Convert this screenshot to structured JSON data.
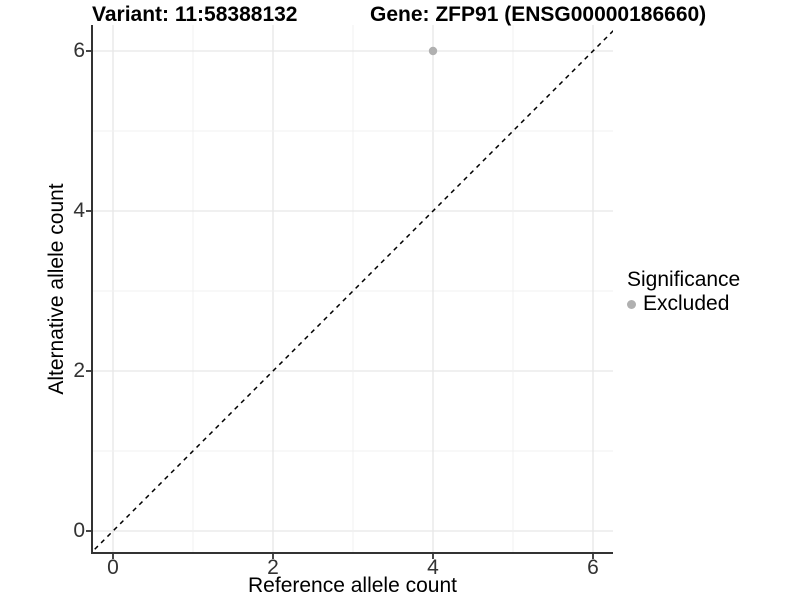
{
  "header": {
    "variant_title": "Variant: 11:58388132",
    "gene_title": "Gene: ZFP91 (ENSG00000186660)"
  },
  "chart_data": {
    "type": "scatter",
    "title": "Variant: 11:58388132  |  Gene: ZFP91 (ENSG00000186660)",
    "xlabel": "Reference allele count",
    "ylabel": "Alternative allele count",
    "xlim": [
      -0.3,
      6.3
    ],
    "ylim": [
      -0.3,
      6.3
    ],
    "x_ticks": [
      0,
      2,
      4,
      6
    ],
    "y_ticks": [
      0,
      2,
      4,
      6
    ],
    "grid": "on",
    "grid_interval": 1,
    "grid_major_color": "#e6e6e6",
    "grid_minor_color": "#f0f0f0",
    "axis_line_color": "#333333",
    "series": [
      {
        "name": "Excluded",
        "color": "#b0b0b0",
        "points": [
          {
            "x": 4,
            "y": 6
          }
        ]
      }
    ],
    "reference_line": {
      "style": "dashed",
      "color": "#000000",
      "slope": 1,
      "intercept": 0,
      "equation": "y = x"
    },
    "legend": {
      "position": "right",
      "title": "Significance",
      "entries": [
        {
          "label": "Excluded",
          "color": "#b0b0b0"
        }
      ]
    }
  }
}
